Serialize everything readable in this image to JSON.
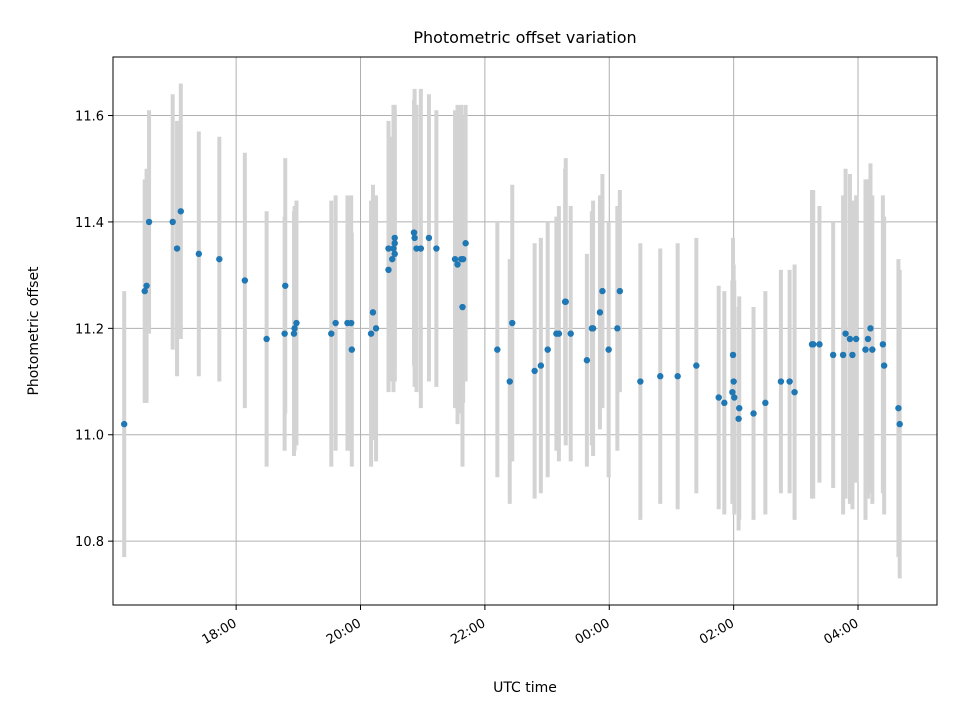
{
  "chart_data": {
    "type": "scatter",
    "title": "Photometric offset variation",
    "xlabel": "UTC time",
    "ylabel": "Photometric offset",
    "x_unit": "hours",
    "x_tick_labels": [
      "18:00",
      "20:00",
      "22:00",
      "00:00",
      "02:00",
      "04:00"
    ],
    "x_tick_values": [
      18,
      20,
      22,
      24,
      26,
      28
    ],
    "xlim": [
      16.02,
      29.27
    ],
    "y_ticks": [
      10.8,
      11.0,
      11.2,
      11.4,
      11.6
    ],
    "y_tick_labels": [
      "10.8",
      "11.0",
      "11.2",
      "11.4",
      "11.6"
    ],
    "ylim": [
      10.68,
      11.71
    ],
    "grid": true,
    "colors": {
      "points": "#1f77b4",
      "errorbars": "#d3d3d3"
    },
    "series": [
      {
        "x": [
          16.2,
          16.53,
          16.56,
          16.6,
          16.98,
          17.05,
          17.11,
          17.4,
          17.73,
          18.14,
          18.49,
          18.78,
          18.79,
          18.93,
          18.94,
          18.97,
          19.53,
          19.6,
          19.79,
          19.85,
          19.86,
          20.17,
          20.2,
          20.25,
          20.45,
          20.45,
          20.51,
          20.53,
          20.55,
          20.55,
          20.55,
          20.86,
          20.87,
          20.9,
          20.97,
          21.1,
          21.22,
          21.52,
          21.56,
          21.62,
          21.64,
          21.65,
          21.69,
          22.2,
          22.4,
          22.44,
          22.8,
          22.9,
          23.01,
          23.15,
          23.19,
          23.29,
          23.3,
          23.38,
          23.64,
          23.72,
          23.74,
          23.85,
          23.89,
          23.99,
          24.13,
          24.17,
          24.5,
          24.82,
          25.1,
          25.4,
          25.76,
          25.85,
          25.98,
          25.99,
          26.0,
          26.01,
          26.08,
          26.09,
          26.32,
          26.51,
          26.76,
          26.9,
          26.98,
          27.26,
          27.28,
          27.38,
          27.6,
          27.76,
          27.8,
          27.87,
          27.91,
          27.97,
          28.12,
          28.16,
          28.2,
          28.23,
          28.4,
          28.42,
          28.65,
          28.67
        ],
        "y": [
          11.02,
          11.27,
          11.28,
          11.4,
          11.4,
          11.35,
          11.42,
          11.34,
          11.33,
          11.29,
          11.18,
          11.19,
          11.28,
          11.19,
          11.2,
          11.21,
          11.19,
          11.21,
          11.21,
          11.21,
          11.16,
          11.19,
          11.23,
          11.2,
          11.31,
          11.35,
          11.33,
          11.35,
          11.36,
          11.37,
          11.34,
          11.38,
          11.37,
          11.35,
          11.35,
          11.37,
          11.35,
          11.33,
          11.32,
          11.33,
          11.24,
          11.33,
          11.36,
          11.16,
          11.1,
          11.21,
          11.12,
          11.13,
          11.16,
          11.19,
          11.19,
          11.25,
          11.25,
          11.19,
          11.14,
          11.2,
          11.2,
          11.23,
          11.27,
          11.16,
          11.2,
          11.27,
          11.1,
          11.11,
          11.11,
          11.13,
          11.07,
          11.06,
          11.08,
          11.15,
          11.1,
          11.07,
          11.03,
          11.05,
          11.04,
          11.06,
          11.1,
          11.1,
          11.08,
          11.17,
          11.17,
          11.17,
          11.15,
          11.15,
          11.19,
          11.18,
          11.15,
          11.18,
          11.16,
          11.18,
          11.2,
          11.16,
          11.17,
          11.13,
          11.05,
          11.02
        ],
        "yerr": [
          0.25,
          0.21,
          0.22,
          0.21,
          0.24,
          0.24,
          0.24,
          0.23,
          0.23,
          0.24,
          0.24,
          0.22,
          0.24,
          0.23,
          0.23,
          0.23,
          0.25,
          0.24,
          0.24,
          0.24,
          0.22,
          0.25,
          0.24,
          0.25,
          0.23,
          0.24,
          0.23,
          0.27,
          0.26,
          0.24,
          0.24,
          0.25,
          0.28,
          0.27,
          0.3,
          0.27,
          0.26,
          0.28,
          0.3,
          0.29,
          0.3,
          0.27,
          0.26,
          0.24,
          0.23,
          0.26,
          0.24,
          0.24,
          0.24,
          0.22,
          0.24,
          0.25,
          0.27,
          0.24,
          0.2,
          0.22,
          0.24,
          0.22,
          0.22,
          0.24,
          0.23,
          0.19,
          0.26,
          0.24,
          0.25,
          0.24,
          0.21,
          0.21,
          0.21,
          0.22,
          0.22,
          0.22,
          0.21,
          0.21,
          0.2,
          0.21,
          0.21,
          0.21,
          0.24,
          0.29,
          0.29,
          0.26,
          0.25,
          0.3,
          0.31,
          0.31,
          0.29,
          0.27,
          0.32,
          0.3,
          0.31,
          0.29,
          0.28,
          0.28,
          0.28,
          0.29
        ]
      }
    ]
  }
}
